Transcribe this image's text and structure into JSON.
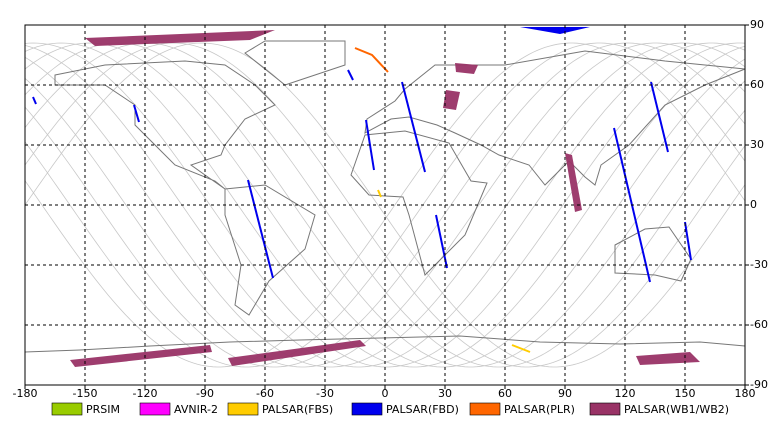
{
  "chart_data": {
    "type": "map",
    "xlim": [
      -180,
      180
    ],
    "ylim": [
      -90,
      90
    ],
    "xticks": [
      -180,
      -150,
      -120,
      -90,
      -60,
      -30,
      0,
      30,
      60,
      90,
      120,
      150,
      180
    ],
    "yticks": [
      -90,
      -60,
      -30,
      0,
      30,
      60,
      90
    ],
    "grid": true,
    "legend": [
      {
        "name": "PRSIM",
        "color": "#99cc00"
      },
      {
        "name": "AVNIR-2",
        "color": "#ff00ff"
      },
      {
        "name": "PALSAR(FBS)",
        "color": "#ffcc00"
      },
      {
        "name": "PALSAR(FBD)",
        "color": "#0000ee"
      },
      {
        "name": "PALSAR(PLR)",
        "color": "#ff6600"
      },
      {
        "name": "PALSAR(WB1/WB2)",
        "color": "#993366"
      }
    ]
  }
}
